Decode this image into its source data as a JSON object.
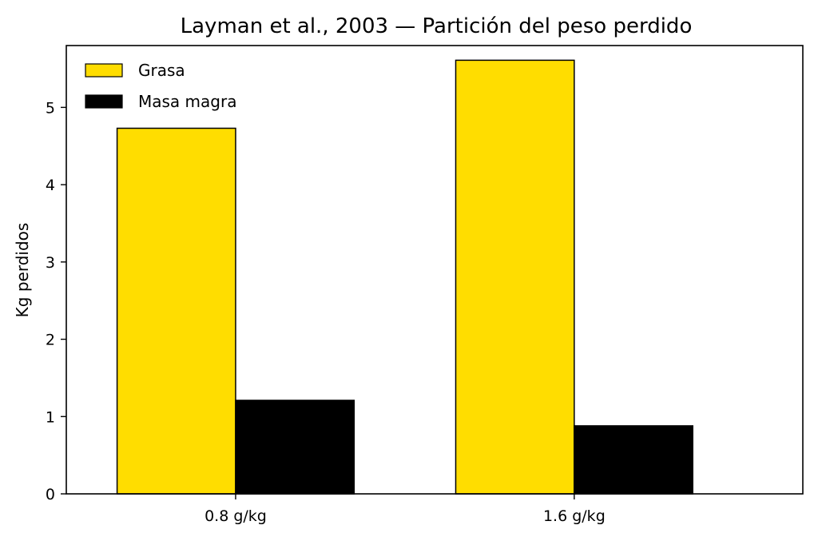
{
  "chart_data": {
    "type": "bar",
    "title": "Layman et al., 2003 — Partición del peso perdido",
    "xlabel": "",
    "ylabel": "Kg perdidos",
    "categories": [
      "0.8 g/kg",
      "1.6 g/kg"
    ],
    "series": [
      {
        "name": "Grasa",
        "values": [
          4.73,
          5.61
        ],
        "color": "#FFDD00"
      },
      {
        "name": "Masa magra",
        "values": [
          1.21,
          0.88
        ],
        "color": "#000000"
      }
    ],
    "ylim": [
      0,
      5.8
    ],
    "yticks": [
      "0",
      "1",
      "2",
      "3",
      "4",
      "5"
    ],
    "grid": false,
    "legend_position": "top-left"
  }
}
